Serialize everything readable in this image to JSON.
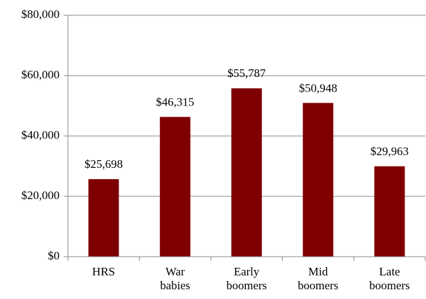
{
  "chart_data": {
    "type": "bar",
    "categories": [
      "HRS",
      "War babies",
      "Early boomers",
      "Mid boomers",
      "Late boomers"
    ],
    "values": [
      25698,
      46315,
      55787,
      50948,
      29963
    ],
    "value_labels": [
      "$25,698",
      "$46,315",
      "$55,787",
      "$50,948",
      "$29,963"
    ],
    "color": "#7f0000",
    "ylim": [
      0,
      80000
    ],
    "yticks": [
      {
        "value": 0,
        "label": "$0"
      },
      {
        "value": 20000,
        "label": "$20,000"
      },
      {
        "value": 40000,
        "label": "$40,000"
      },
      {
        "value": 60000,
        "label": "$60,000"
      },
      {
        "value": 80000,
        "label": "$80,000"
      }
    ],
    "grid": true
  }
}
